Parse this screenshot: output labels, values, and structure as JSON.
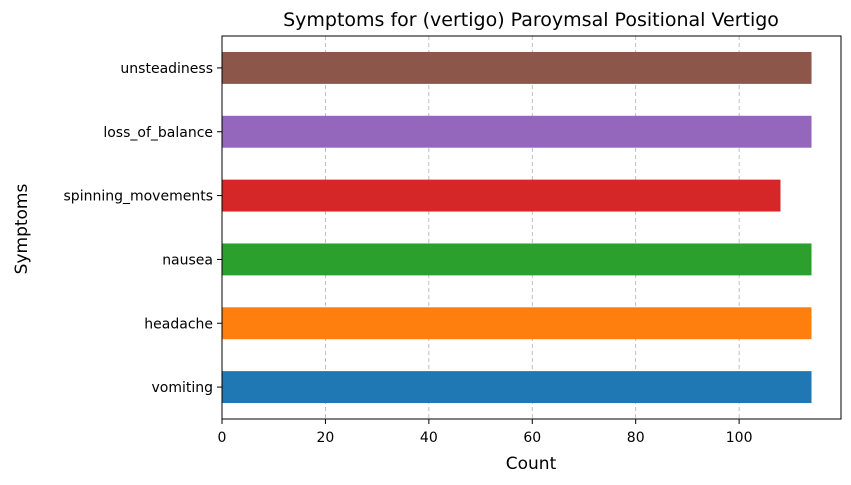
{
  "chart_data": {
    "type": "bar",
    "orientation": "horizontal",
    "title": "Symptoms for (vertigo) Paroymsal  Positional Vertigo",
    "xlabel": "Count",
    "ylabel": "Symptoms",
    "categories": [
      "vomiting",
      "headache",
      "nausea",
      "spinning_movements",
      "loss_of_balance",
      "unsteadiness"
    ],
    "values": [
      114,
      114,
      114,
      108,
      114,
      114
    ],
    "colors": [
      "#1f77b4",
      "#ff7f0e",
      "#2ca02c",
      "#d62728",
      "#9467bd",
      "#8c564b"
    ],
    "xlim": [
      0,
      119.7
    ],
    "xticks": [
      0,
      20,
      40,
      60,
      80,
      100
    ],
    "grid": "x-dashed",
    "legend": "none"
  }
}
